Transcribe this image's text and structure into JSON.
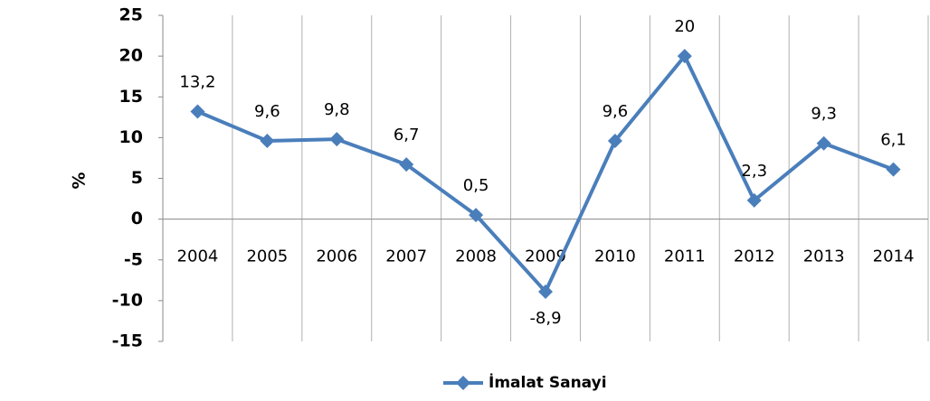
{
  "chart_data": {
    "type": "line",
    "categories": [
      "2004",
      "2005",
      "2006",
      "2007",
      "2008",
      "2009",
      "2010",
      "2011",
      "2012",
      "2013",
      "2014"
    ],
    "series": [
      {
        "name": "İmalat Sanayi",
        "color": "#4a7ebb",
        "values": [
          13.2,
          9.6,
          9.8,
          6.7,
          0.5,
          -8.9,
          9.6,
          20,
          2.3,
          9.3,
          6.1
        ],
        "value_labels": [
          "13,2",
          "9,6",
          "9,8",
          "6,7",
          "0,5",
          "-8,9",
          "9,6",
          "20",
          "2,3",
          "9,3",
          "6,1"
        ]
      }
    ],
    "y_label": "%",
    "ylim": [
      -15,
      25
    ],
    "yticks": [
      -15,
      -10,
      -5,
      0,
      5,
      10,
      15,
      20,
      25
    ],
    "legend": "bottom"
  }
}
